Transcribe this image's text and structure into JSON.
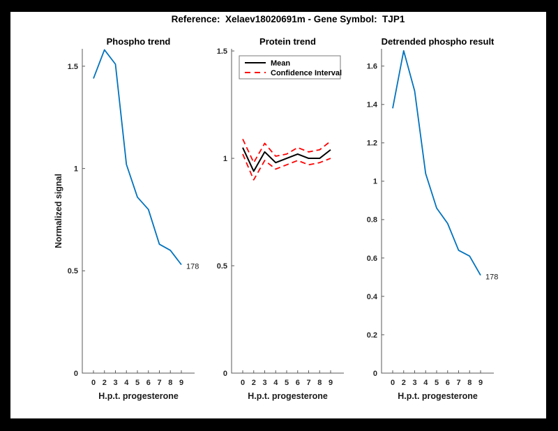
{
  "figure": {
    "title": "Reference:  Xelaev18020691m - Gene Symbol:  TJP1",
    "background_color": "#000000",
    "canvas_color": "#ffffff",
    "accent_blue": "#0072BD",
    "accent_red": "#FF0000"
  },
  "chart_data": [
    {
      "type": "line",
      "title": "Phospho trend",
      "xlabel": "H.p.t. progesterone",
      "ylabel": "Normalized signal",
      "x_ticklabels": [
        "0",
        "2",
        "3",
        "4",
        "5",
        "6",
        "7",
        "8",
        "9"
      ],
      "y_ticks": [
        0,
        0.5,
        1,
        1.5
      ],
      "y_tick_labels": [
        "0",
        "0.5",
        "1",
        "1.5"
      ],
      "ylim": [
        0,
        1.585
      ],
      "grid": false,
      "legend": null,
      "series": [
        {
          "name": "phospho-trend",
          "color": "#0072BD",
          "style": "solid",
          "width": 1.8,
          "values": [
            1.44,
            1.58,
            1.51,
            1.02,
            0.86,
            0.8,
            0.63,
            0.6,
            0.53
          ]
        }
      ],
      "end_annotation": "178"
    },
    {
      "type": "line",
      "title": "Protein trend",
      "xlabel": "H.p.t. progesterone",
      "ylabel": "",
      "x_ticklabels": [
        "0",
        "2",
        "3",
        "4",
        "5",
        "6",
        "7",
        "8",
        "9"
      ],
      "y_ticks": [
        0,
        0.5,
        1,
        1.5
      ],
      "y_tick_labels": [
        "0",
        "0.5",
        "1",
        "1.5"
      ],
      "ylim": [
        0,
        1.51
      ],
      "grid": false,
      "legend": {
        "position": "upper-left",
        "entries": [
          {
            "label": "Mean",
            "color": "#000000",
            "style": "solid"
          },
          {
            "label": "Confidence Interval",
            "color": "#FF0000",
            "style": "dashed"
          }
        ]
      },
      "series": [
        {
          "name": "mean",
          "color": "#000000",
          "style": "solid",
          "width": 2,
          "values": [
            1.05,
            0.94,
            1.03,
            0.98,
            1.0,
            1.02,
            1.0,
            1.0,
            1.04
          ]
        },
        {
          "name": "ci-upper",
          "color": "#FF0000",
          "style": "dashed",
          "width": 1.8,
          "values": [
            1.09,
            0.98,
            1.07,
            1.01,
            1.02,
            1.05,
            1.03,
            1.04,
            1.08
          ]
        },
        {
          "name": "ci-lower",
          "color": "#FF0000",
          "style": "dashed",
          "width": 1.8,
          "values": [
            1.02,
            0.9,
            0.99,
            0.95,
            0.97,
            0.99,
            0.97,
            0.98,
            1.0
          ]
        }
      ],
      "end_annotation": null
    },
    {
      "type": "line",
      "title": "Detrended phospho result",
      "xlabel": "H.p.t. progesterone",
      "ylabel": "",
      "x_ticklabels": [
        "0",
        "2",
        "3",
        "4",
        "5",
        "6",
        "7",
        "8",
        "9"
      ],
      "y_ticks": [
        0,
        0.2,
        0.4,
        0.6,
        0.8,
        1,
        1.2,
        1.4,
        1.6
      ],
      "y_tick_labels": [
        "0",
        "0.2",
        "0.4",
        "0.6",
        "0.8",
        "1",
        "1.2",
        "1.4",
        "1.6"
      ],
      "ylim": [
        0,
        1.69
      ],
      "grid": false,
      "legend": null,
      "series": [
        {
          "name": "detrended-phospho",
          "color": "#0072BD",
          "style": "solid",
          "width": 1.8,
          "values": [
            1.38,
            1.68,
            1.47,
            1.04,
            0.86,
            0.78,
            0.64,
            0.61,
            0.51
          ]
        }
      ],
      "end_annotation": "178"
    }
  ]
}
